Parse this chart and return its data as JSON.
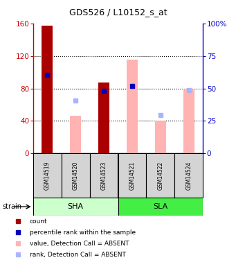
{
  "title": "GDS526 / L10152_s_at",
  "samples": [
    "GSM14519",
    "GSM14520",
    "GSM14523",
    "GSM14521",
    "GSM14522",
    "GSM14524"
  ],
  "groups": [
    {
      "name": "SHA",
      "color_light": "#c8f5c8",
      "color_dark": "#66dd66",
      "count": 3
    },
    {
      "name": "SLA",
      "color_light": "#44ee44",
      "color_dark": "#44ee44",
      "count": 3
    }
  ],
  "red_bars": [
    157,
    0,
    87,
    0,
    0,
    0
  ],
  "pink_bars": [
    0,
    46,
    0,
    115,
    40,
    78
  ],
  "blue_sq_vals": [
    97,
    -1,
    77,
    83,
    -1,
    -1
  ],
  "lightblue_sq_vals": [
    -1,
    65,
    -1,
    -1,
    47,
    78
  ],
  "ylim_left": [
    0,
    160
  ],
  "yticks_left": [
    0,
    40,
    80,
    120,
    160
  ],
  "yticks_right": [
    0,
    25,
    50,
    75,
    100
  ],
  "yticklabels_right": [
    "0",
    "25",
    "50",
    "75",
    "100%"
  ],
  "left_axis_color": "#cc0000",
  "right_axis_color": "#0000cc",
  "red_bar_color": "#aa0000",
  "pink_bar_color": "#ffb3b3",
  "blue_sq_color": "#0000bb",
  "lightblue_sq_color": "#aab3ff",
  "bar_width": 0.4,
  "sha_bg": "#ccffcc",
  "sla_bg": "#44ee44",
  "grid_color": "black"
}
